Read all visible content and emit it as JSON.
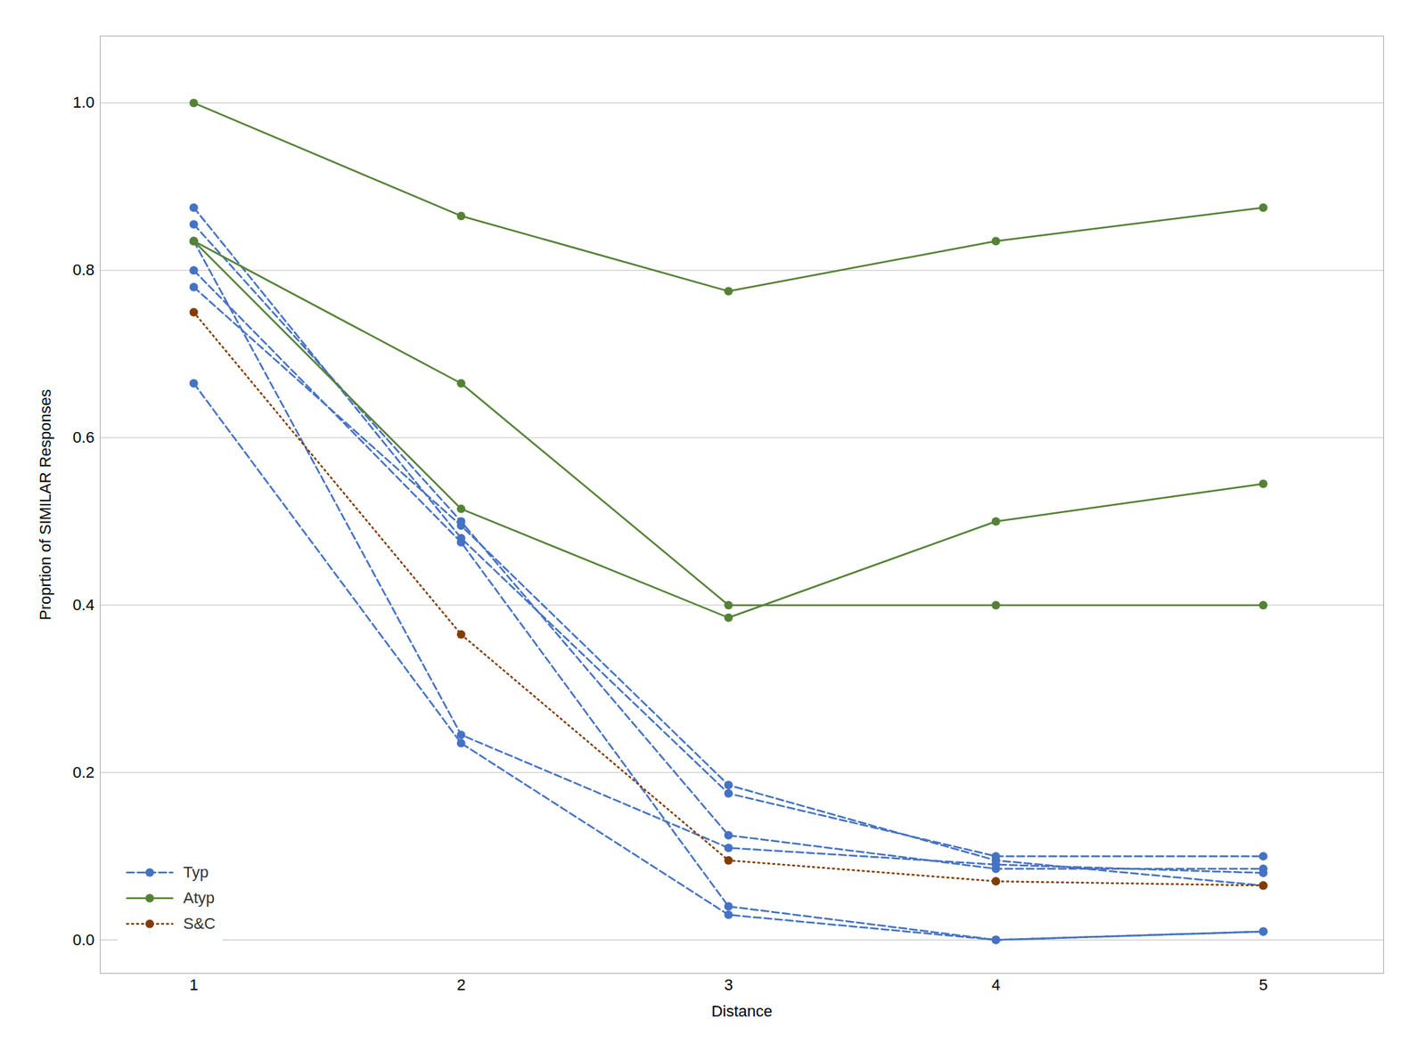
{
  "chart_data": {
    "type": "line",
    "xlabel": "Distance",
    "ylabel": "Proprtion of SIMILAR Responses",
    "x": [
      1,
      2,
      3,
      4,
      5
    ],
    "series": [
      {
        "name": "Typ",
        "color": "#4472C4",
        "line_style": "dashed",
        "marker": "circle",
        "values": [
          0.875,
          0.48,
          0.175,
          0.1,
          0.1
        ]
      },
      {
        "name": "Typ",
        "color": "#4472C4",
        "line_style": "dashed",
        "marker": "circle",
        "values": [
          0.855,
          0.5,
          0.125,
          0.085,
          0.085
        ]
      },
      {
        "name": "Typ",
        "color": "#4472C4",
        "line_style": "dashed",
        "marker": "circle",
        "values": [
          0.8,
          0.475,
          0.04,
          0.0,
          0.01
        ]
      },
      {
        "name": "Typ",
        "color": "#4472C4",
        "line_style": "dashed",
        "marker": "circle",
        "values": [
          0.665,
          0.235,
          0.03,
          0.0,
          0.01
        ]
      },
      {
        "name": "Typ",
        "color": "#4472C4",
        "line_style": "dashed",
        "marker": "circle",
        "values": [
          0.835,
          0.245,
          0.11,
          0.09,
          0.08
        ]
      },
      {
        "name": "Typ",
        "color": "#4472C4",
        "line_style": "dashed",
        "marker": "circle",
        "values": [
          0.78,
          0.495,
          0.185,
          0.095,
          0.065
        ]
      },
      {
        "name": "Atyp",
        "color": "#548235",
        "line_style": "solid",
        "marker": "circle",
        "values": [
          1.0,
          0.865,
          0.775,
          0.835,
          0.875
        ]
      },
      {
        "name": "Atyp",
        "color": "#548235",
        "line_style": "solid",
        "marker": "circle",
        "values": [
          0.835,
          0.665,
          0.4,
          0.4,
          0.4
        ]
      },
      {
        "name": "Atyp",
        "color": "#548235",
        "line_style": "solid",
        "marker": "circle",
        "values": [
          0.835,
          0.515,
          0.385,
          0.5,
          0.545
        ]
      },
      {
        "name": "S&C",
        "color": "#833C00",
        "line_style": "dotted",
        "marker": "circle",
        "values": [
          0.75,
          0.365,
          0.095,
          0.07,
          0.065
        ]
      }
    ],
    "xlim": [
      0.65,
      5.45
    ],
    "ylim": [
      -0.04,
      1.08
    ],
    "xticks": [
      1,
      2,
      3,
      4,
      5
    ],
    "yticks": [
      {
        "value": 0,
        "label": "0.0"
      },
      0.2,
      0.4,
      0.6,
      0.8,
      {
        "value": 1.0,
        "label": "1.0"
      }
    ],
    "grid": "y",
    "legend": "lower left"
  }
}
